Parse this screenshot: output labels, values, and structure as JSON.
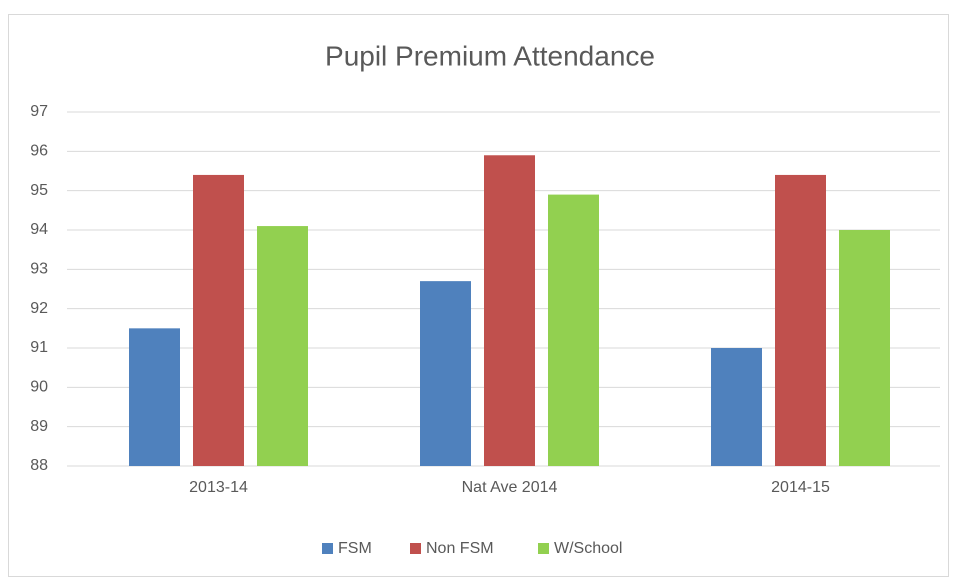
{
  "chart_data": {
    "type": "bar",
    "title": "Pupil Premium Attendance",
    "categories": [
      "2013-14",
      "Nat Ave 2014",
      "2014-15"
    ],
    "series": [
      {
        "name": "FSM",
        "color": "#4f81bd",
        "values": [
          91.5,
          92.7,
          91.0
        ]
      },
      {
        "name": "Non FSM",
        "color": "#c0504d",
        "values": [
          95.4,
          95.9,
          95.4
        ]
      },
      {
        "name": "W/School",
        "color": "#92d050",
        "values": [
          94.1,
          94.9,
          94.0
        ]
      }
    ],
    "ylim": [
      88,
      97
    ],
    "yticks": [
      88,
      89,
      90,
      91,
      92,
      93,
      94,
      95,
      96,
      97
    ],
    "grid": true,
    "legend": "bottom"
  }
}
